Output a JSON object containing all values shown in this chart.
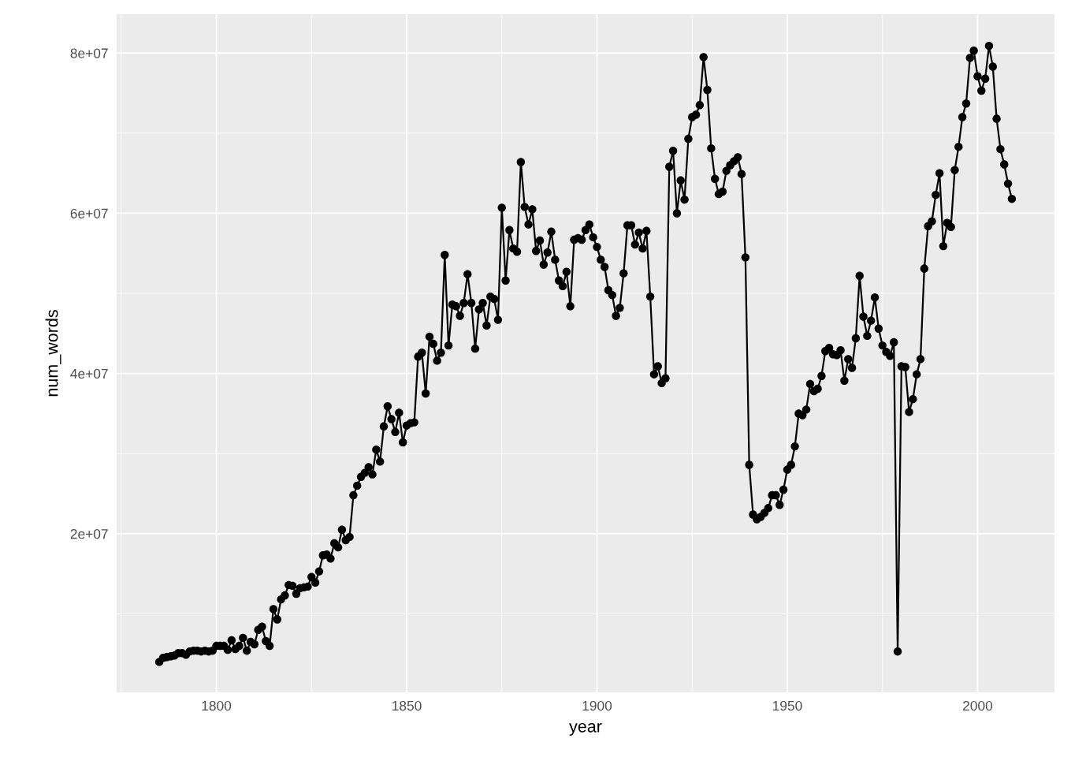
{
  "chart_data": {
    "type": "line",
    "xlabel": "year",
    "ylabel": "num_words",
    "marker": "circle",
    "line_style": "solid",
    "grid": true,
    "xlim": [
      1773.8,
      2020.2
    ],
    "xticks": [
      1800,
      1850,
      1900,
      1950,
      2000
    ],
    "ylim": [
      200000,
      84850000
    ],
    "yticks": [
      {
        "value": 20000000,
        "label": "2e+07"
      },
      {
        "value": 40000000,
        "label": "4e+07"
      },
      {
        "value": 60000000,
        "label": "6e+07"
      },
      {
        "value": 80000000,
        "label": "8e+07"
      }
    ],
    "x": [
      1785,
      1786,
      1787,
      1788,
      1789,
      1790,
      1791,
      1792,
      1793,
      1794,
      1795,
      1796,
      1797,
      1798,
      1799,
      1800,
      1801,
      1802,
      1803,
      1804,
      1805,
      1806,
      1807,
      1808,
      1809,
      1810,
      1811,
      1812,
      1813,
      1814,
      1815,
      1816,
      1817,
      1818,
      1819,
      1820,
      1821,
      1822,
      1823,
      1824,
      1825,
      1826,
      1827,
      1828,
      1829,
      1830,
      1831,
      1832,
      1833,
      1834,
      1835,
      1836,
      1837,
      1838,
      1839,
      1840,
      1841,
      1842,
      1843,
      1844,
      1845,
      1846,
      1847,
      1848,
      1849,
      1850,
      1851,
      1852,
      1853,
      1854,
      1855,
      1856,
      1857,
      1858,
      1859,
      1860,
      1861,
      1862,
      1863,
      1864,
      1865,
      1866,
      1867,
      1868,
      1869,
      1870,
      1871,
      1872,
      1873,
      1874,
      1875,
      1876,
      1877,
      1878,
      1879,
      1880,
      1881,
      1882,
      1883,
      1884,
      1885,
      1886,
      1887,
      1888,
      1889,
      1890,
      1891,
      1892,
      1893,
      1894,
      1895,
      1896,
      1897,
      1898,
      1899,
      1900,
      1901,
      1902,
      1903,
      1904,
      1905,
      1906,
      1907,
      1908,
      1909,
      1910,
      1911,
      1912,
      1913,
      1914,
      1915,
      1916,
      1917,
      1918,
      1919,
      1920,
      1921,
      1922,
      1923,
      1924,
      1925,
      1926,
      1927,
      1928,
      1929,
      1930,
      1931,
      1932,
      1933,
      1934,
      1935,
      1936,
      1937,
      1938,
      1939,
      1940,
      1941,
      1942,
      1943,
      1944,
      1945,
      1946,
      1947,
      1948,
      1949,
      1950,
      1951,
      1952,
      1953,
      1954,
      1955,
      1956,
      1957,
      1958,
      1959,
      1960,
      1961,
      1962,
      1963,
      1964,
      1965,
      1966,
      1967,
      1968,
      1969,
      1970,
      1971,
      1972,
      1973,
      1974,
      1975,
      1976,
      1977,
      1978,
      1979,
      1980,
      1981,
      1982,
      1983,
      1984,
      1985,
      1986,
      1987,
      1988,
      1989,
      1990,
      1991,
      1992,
      1993,
      1994,
      1995,
      1996,
      1997,
      1998,
      1999,
      2000,
      2001,
      2002,
      2003,
      2004,
      2005,
      2006,
      2007,
      2008,
      2009
    ],
    "series": [
      {
        "color": "#000000",
        "values": [
          4000000.0,
          4500000.0,
          4600000.0,
          4700000.0,
          4800000.0,
          5100000.0,
          5100000.0,
          4900000.0,
          5300000.0,
          5400000.0,
          5400000.0,
          5300000.0,
          5400000.0,
          5300000.0,
          5400000.0,
          6000000.0,
          6000000.0,
          6000000.0,
          5500000.0,
          6700000.0,
          5600000.0,
          6000000.0,
          7000000.0,
          5400000.0,
          6500000.0,
          6200000.0,
          8000000.0,
          8400000.0,
          6600000.0,
          6000000.0,
          10600000.0,
          9300000.0,
          11800000.0,
          12300000.0,
          13600000.0,
          13500000.0,
          12500000.0,
          13200000.0,
          13300000.0,
          13400000.0,
          14600000.0,
          13900000.0,
          15300000.0,
          17300000.0,
          17400000.0,
          16900000.0,
          18800000.0,
          18300000.0,
          20500000.0,
          19200000.0,
          19600000.0,
          24800000.0,
          26000000.0,
          27100000.0,
          27600000.0,
          28300000.0,
          27400000.0,
          30500000.0,
          29000000.0,
          33400000.0,
          35900000.0,
          34300000.0,
          32700000.0,
          35100000.0,
          31400000.0,
          33500000.0,
          33800000.0,
          33900000.0,
          42100000.0,
          42600000.0,
          37500000.0,
          44600000.0,
          43700000.0,
          41600000.0,
          42600000.0,
          54800000.0,
          43500000.0,
          48600000.0,
          48400000.0,
          47200000.0,
          48800000.0,
          52400000.0,
          48800000.0,
          43100000.0,
          48000000.0,
          48800000.0,
          46000000.0,
          49600000.0,
          49300000.0,
          46700000.0,
          60700000.0,
          51600000.0,
          57900000.0,
          55600000.0,
          55200000.0,
          66400000.0,
          60800000.0,
          58600000.0,
          60500000.0,
          55300000.0,
          56600000.0,
          53600000.0,
          55100000.0,
          57700000.0,
          54200000.0,
          51600000.0,
          50900000.0,
          52700000.0,
          48400000.0,
          56700000.0,
          56900000.0,
          56700000.0,
          57900000.0,
          58600000.0,
          57000000.0,
          55800000.0,
          54200000.0,
          53300000.0,
          50400000.0,
          49800000.0,
          47200000.0,
          48200000.0,
          52500000.0,
          58500000.0,
          58500000.0,
          56100000.0,
          57600000.0,
          55600000.0,
          57800000.0,
          49600000.0,
          39900000.0,
          40900000.0,
          38800000.0,
          39400000.0,
          65800000.0,
          67800000.0,
          60000000.0,
          64100000.0,
          61700000.0,
          69300000.0,
          72000000.0,
          72300000.0,
          73500000.0,
          79500000.0,
          75400000.0,
          68100000.0,
          64300000.0,
          62400000.0,
          62700000.0,
          65300000.0,
          66000000.0,
          66500000.0,
          67000000.0,
          64900000.0,
          54500000.0,
          28600000.0,
          22400000.0,
          21800000.0,
          22100000.0,
          22600000.0,
          23200000.0,
          24800000.0,
          24800000.0,
          23600000.0,
          25500000.0,
          28000000.0,
          28600000.0,
          30900000.0,
          35000000.0,
          34800000.0,
          35500000.0,
          38700000.0,
          37800000.0,
          38100000.0,
          39700000.0,
          42800000.0,
          43200000.0,
          42400000.0,
          42300000.0,
          42900000.0,
          39100000.0,
          41800000.0,
          40700000.0,
          44400000.0,
          52200000.0,
          47100000.0,
          44700000.0,
          46600000.0,
          49500000.0,
          45600000.0,
          43500000.0,
          42700000.0,
          42200000.0,
          43900000.0,
          5300000.0,
          40900000.0,
          40800000.0,
          35200000.0,
          36800000.0,
          39900000.0,
          41800000.0,
          53100000.0,
          58400000.0,
          59000000.0,
          62300000.0,
          65000000.0,
          55900000.0,
          58800000.0,
          58300000.0,
          65400000.0,
          68300000.0,
          72000000.0,
          73700000.0,
          79400000.0,
          80300000.0,
          77100000.0,
          75300000.0,
          76800000.0,
          80900000.0,
          78300000.0,
          71800000.0,
          68000000.0,
          66100000.0,
          63700000.0,
          61800000.0
        ]
      }
    ]
  }
}
